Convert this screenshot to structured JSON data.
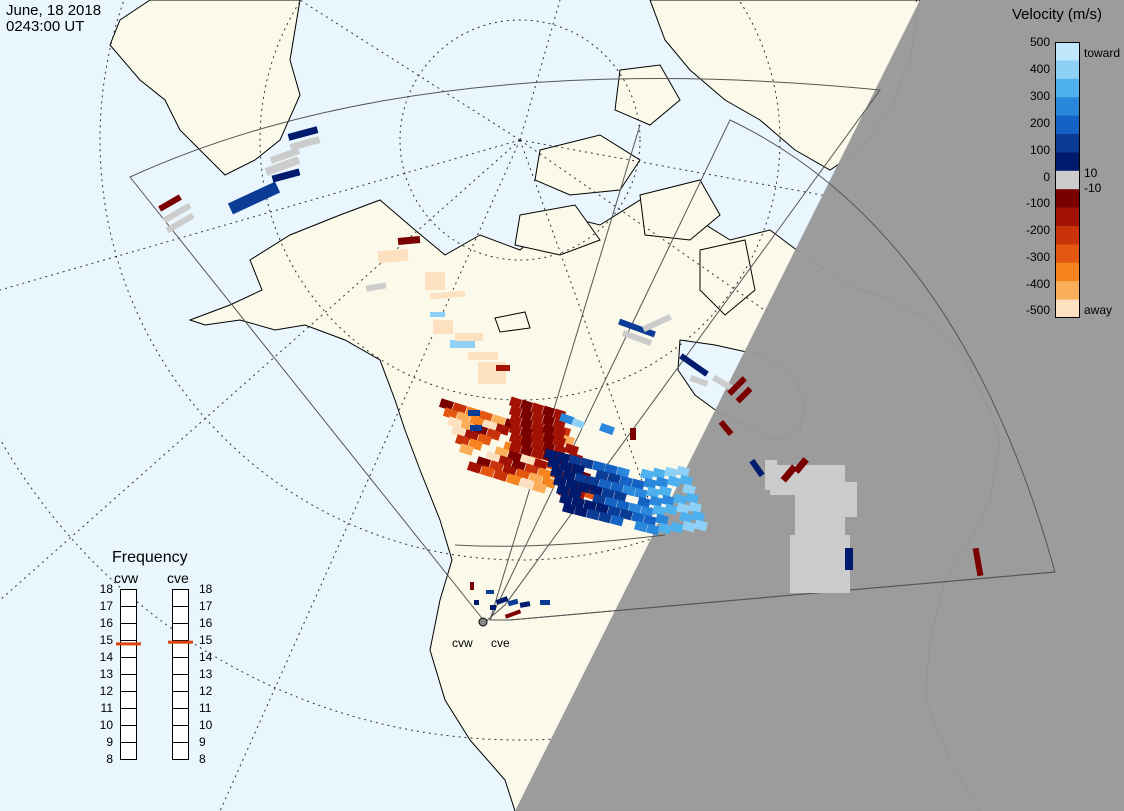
{
  "header": {
    "date": "June, 18 2018",
    "time": "0243:00 UT"
  },
  "legend": {
    "title": "Velocity (m/s)",
    "ticks": [
      "500",
      "400",
      "300",
      "200",
      "100",
      "10",
      "0",
      "-10",
      "-100",
      "-200",
      "-300",
      "-400",
      "-500"
    ],
    "toward_label": "toward",
    "away_label": "away",
    "colors": [
      "#bfe6fb",
      "#8ed0f6",
      "#4fb0ee",
      "#2a88dc",
      "#1463c4",
      "#0a3c96",
      "#001a6e",
      "#cccccc",
      "#7a0000",
      "#a21205",
      "#c8330c",
      "#e45710",
      "#f5841e",
      "#fbae5a",
      "#fde0c0"
    ]
  },
  "frequency": {
    "title": "Frequency",
    "radars": [
      "cvw",
      "cve"
    ],
    "scale": [
      "18",
      "17",
      "16",
      "15",
      "14",
      "13",
      "12",
      "11",
      "10",
      "9",
      "8"
    ],
    "values_mhz": [
      14.8,
      14.9
    ],
    "marker_color": "#d9440f"
  },
  "map": {
    "radar_sites": [
      "cvw",
      "cve"
    ],
    "colors": {
      "ocean": "#eaf6fd",
      "land": "#fbf9ea",
      "night": "#999999",
      "scatter_gray": "#cccccc"
    }
  }
}
